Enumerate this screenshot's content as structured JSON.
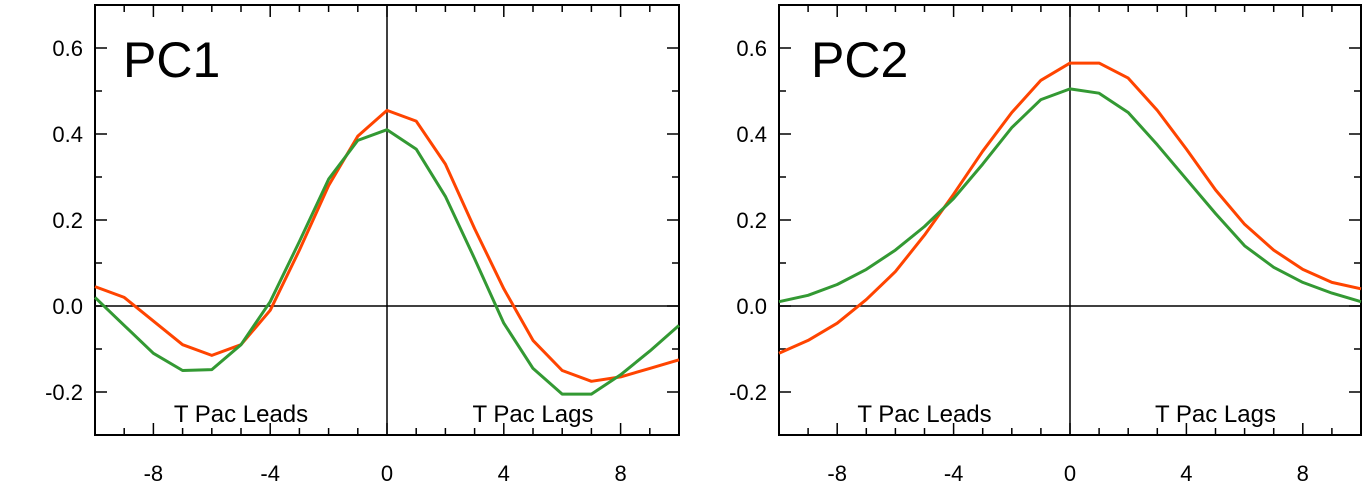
{
  "chart_data": [
    {
      "type": "line",
      "title": "PC1",
      "xlim": [
        -10,
        10
      ],
      "ylim": [
        -0.3,
        0.7
      ],
      "x_ticks": [
        -8,
        -4,
        0,
        4,
        8
      ],
      "x_tick_labels": [
        "-8",
        "-4",
        "0",
        "4",
        "8"
      ],
      "y_ticks": [
        -0.2,
        0.0,
        0.2,
        0.4,
        0.6
      ],
      "y_tick_labels": [
        "-0.2",
        "0.0",
        "0.2",
        "0.4",
        "0.6"
      ],
      "annotations": [
        "T Pac Leads",
        "T Pac Lags"
      ],
      "grid": false,
      "x": [
        -10,
        -9,
        -8,
        -7,
        -6,
        -5,
        -4,
        -3,
        -2,
        -1,
        0,
        1,
        2,
        3,
        4,
        5,
        6,
        7,
        8,
        9,
        10
      ],
      "series": [
        {
          "color": "#ff4400",
          "values": [
            0.045,
            0.02,
            -0.035,
            -0.09,
            -0.115,
            -0.09,
            -0.01,
            0.13,
            0.28,
            0.395,
            0.455,
            0.43,
            0.33,
            0.18,
            0.04,
            -0.08,
            -0.15,
            -0.175,
            -0.165,
            -0.145,
            -0.125
          ]
        },
        {
          "color": "#339933",
          "values": [
            0.02,
            -0.045,
            -0.11,
            -0.15,
            -0.148,
            -0.09,
            0.01,
            0.15,
            0.295,
            0.385,
            0.41,
            0.365,
            0.255,
            0.11,
            -0.04,
            -0.145,
            -0.205,
            -0.205,
            -0.16,
            -0.105,
            -0.045
          ]
        }
      ]
    },
    {
      "type": "line",
      "title": "PC2",
      "xlim": [
        -10,
        10
      ],
      "ylim": [
        -0.3,
        0.7
      ],
      "x_ticks": [
        -8,
        -4,
        0,
        4,
        8
      ],
      "x_tick_labels": [
        "-8",
        "-4",
        "0",
        "4",
        "8"
      ],
      "y_ticks": [
        -0.2,
        0.0,
        0.2,
        0.4,
        0.6
      ],
      "y_tick_labels": [
        "-0.2",
        "0.0",
        "0.2",
        "0.4",
        "0.6"
      ],
      "annotations": [
        "T Pac Leads",
        "T Pac Lags"
      ],
      "grid": false,
      "x": [
        -10,
        -9,
        -8,
        -7,
        -6,
        -5,
        -4,
        -3,
        -2,
        -1,
        0,
        1,
        2,
        3,
        4,
        5,
        6,
        7,
        8,
        9,
        10
      ],
      "series": [
        {
          "color": "#ff4400",
          "values": [
            -0.11,
            -0.08,
            -0.04,
            0.015,
            0.08,
            0.165,
            0.26,
            0.36,
            0.45,
            0.525,
            0.565,
            0.565,
            0.53,
            0.455,
            0.365,
            0.27,
            0.19,
            0.13,
            0.085,
            0.055,
            0.04
          ]
        },
        {
          "color": "#339933",
          "values": [
            0.01,
            0.025,
            0.05,
            0.085,
            0.13,
            0.185,
            0.25,
            0.33,
            0.415,
            0.48,
            0.505,
            0.495,
            0.45,
            0.375,
            0.295,
            0.215,
            0.14,
            0.09,
            0.055,
            0.03,
            0.01
          ]
        }
      ]
    }
  ]
}
